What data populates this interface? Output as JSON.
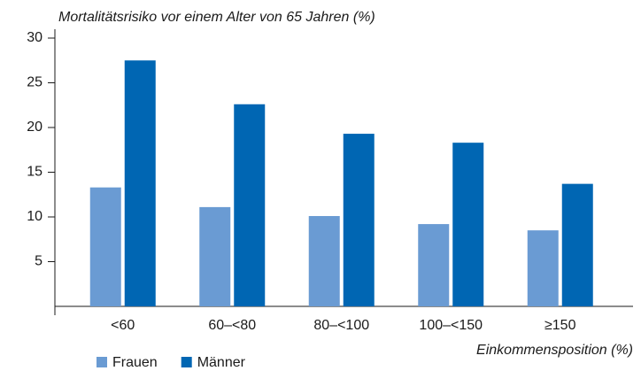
{
  "chart_data": {
    "type": "bar",
    "title": "Mortalitätsrisiko vor einem Alter von 65 Jahren (%)",
    "x_label": "Einkommensposition (%)",
    "categories": [
      "<60",
      "60–<80",
      "80–<100",
      "100–<150",
      "≥150"
    ],
    "series": [
      {
        "name": "Frauen",
        "color": "#6a9bd3",
        "values": [
          13.3,
          11.1,
          10.1,
          9.2,
          8.5
        ]
      },
      {
        "name": "Männer",
        "color": "#0066b3",
        "values": [
          27.5,
          22.6,
          19.3,
          18.3,
          13.7
        ]
      }
    ],
    "ylim": [
      0,
      30
    ],
    "yticks": [
      5,
      10,
      15,
      20,
      25,
      30
    ],
    "grid": false
  }
}
